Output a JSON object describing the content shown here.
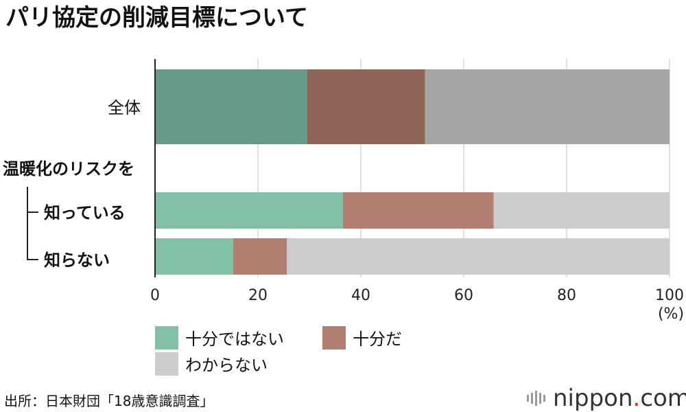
{
  "title": "パリ協定の削減目標について",
  "chart_data": {
    "type": "bar",
    "orientation": "horizontal",
    "stacked": true,
    "group_label": "温暖化のリスクを",
    "categories": [
      "全体",
      "知っている",
      "知らない"
    ],
    "series": [
      {
        "name": "十分ではない",
        "values": [
          29.5,
          36.5,
          15.2
        ]
      },
      {
        "name": "十分だ",
        "values": [
          23.0,
          29.3,
          10.4
        ]
      },
      {
        "name": "わからない",
        "values": [
          47.5,
          34.2,
          74.4
        ]
      }
    ],
    "series_colors": {
      "overall": [
        "#669986",
        "#8f6558",
        "#a5a5a5"
      ],
      "subgroups": [
        "#82c1a8",
        "#b27e6f",
        "#cccccc"
      ]
    },
    "xlim": [
      0,
      100
    ],
    "xticks": [
      "0",
      "20",
      "40",
      "60",
      "80",
      "100"
    ],
    "xunit": "(%)",
    "grid": true,
    "legend_position": "bottom"
  },
  "source": "出所：日本財団「18歳意識調査」",
  "brand": {
    "name": "nippon",
    "dot": ".",
    "suffix": "com"
  }
}
